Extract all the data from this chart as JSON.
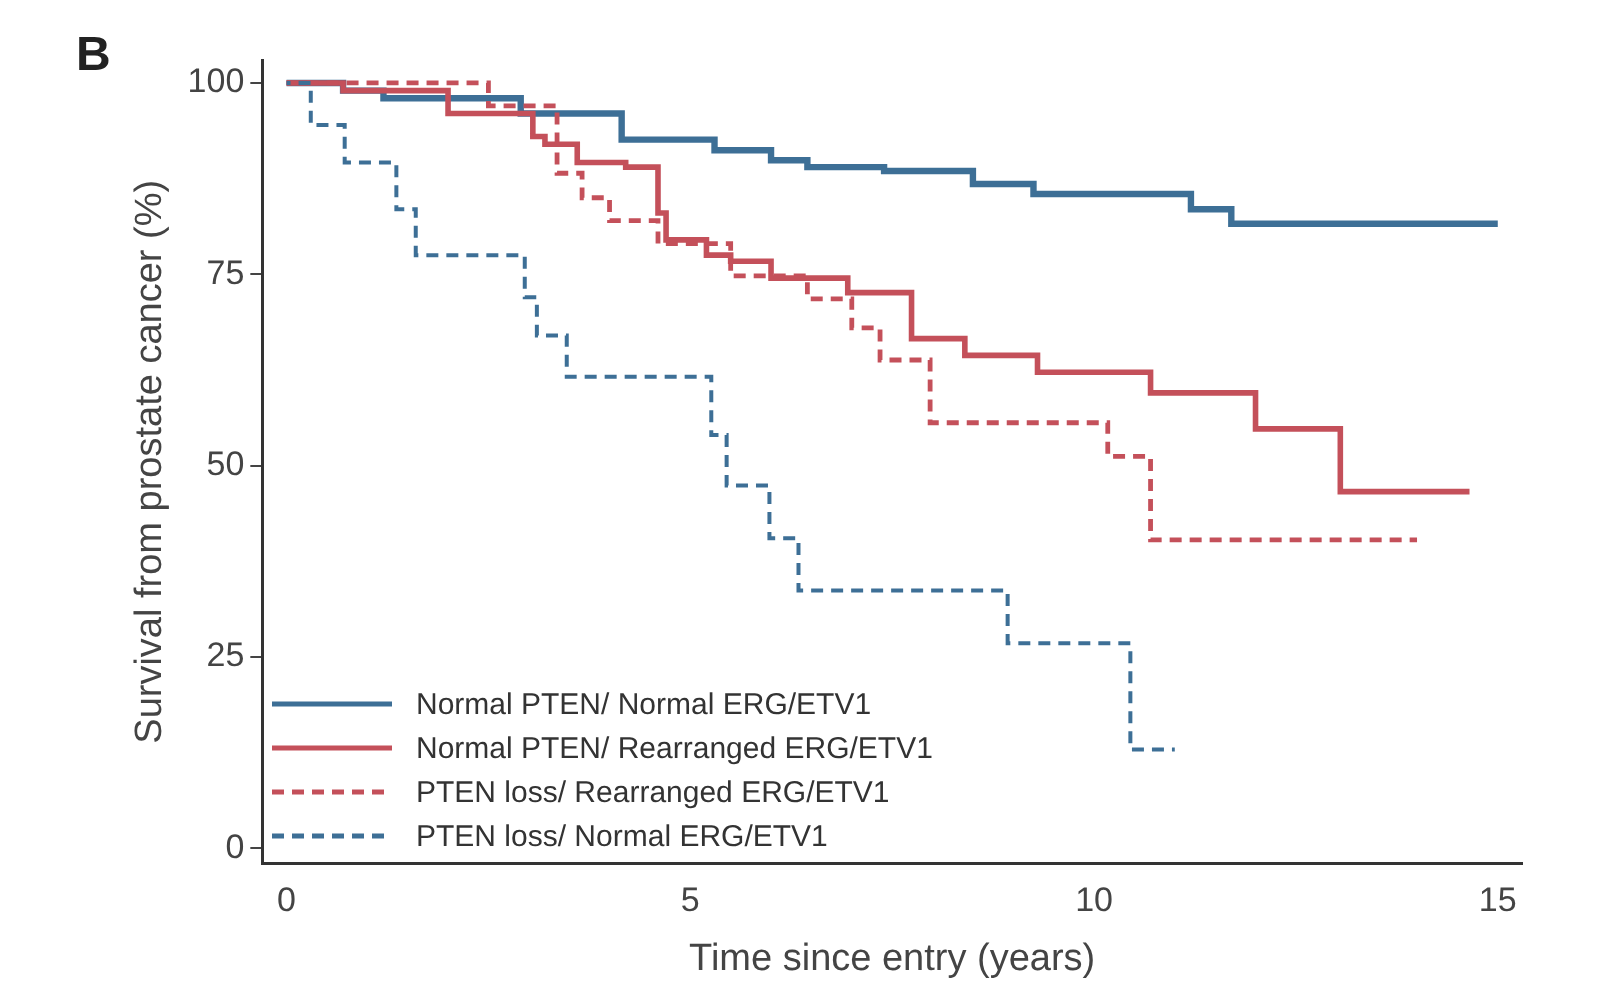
{
  "chart_data": {
    "type": "step",
    "xlabel": "Time since entry (years)",
    "ylabel": "Survival from prostate cancer (%)",
    "annotations": [
      "B"
    ],
    "xlim": [
      -0.3,
      15.3
    ],
    "ylim": [
      -2,
      103
    ],
    "xticks": [
      0,
      5,
      10,
      15
    ],
    "yticks": [
      0,
      25,
      50,
      75,
      100
    ],
    "grid": false,
    "legend": "bottom left",
    "series": [
      {
        "name": "Normal PTEN/ Normal ERG/ETV1",
        "color": "#3d6f96",
        "line_style": "solid",
        "x": [
          0,
          0.7,
          1.2,
          2.9,
          4.15,
          5.3,
          6.0,
          6.45,
          7.4,
          8.5,
          9.25,
          11.2,
          11.7,
          15
        ],
        "values": [
          100,
          99,
          98,
          96,
          92.6,
          91.2,
          89.9,
          89,
          88.5,
          86.8,
          85.5,
          83.5,
          81.6,
          81.6
        ]
      },
      {
        "name": "Normal PTEN/ Rearranged ERG/ETV1",
        "color": "#c4505a",
        "line_style": "solid",
        "x": [
          0,
          0.7,
          2.0,
          3.05,
          3.2,
          3.6,
          4.2,
          4.6,
          4.7,
          5.2,
          5.5,
          6.0,
          6.95,
          7.74,
          8.4,
          9.3,
          10.7,
          12.0,
          13.05,
          14.65
        ],
        "values": [
          100,
          99,
          96,
          93,
          92,
          89.6,
          89,
          83,
          79.5,
          77.5,
          76.7,
          74.5,
          72.6,
          66.6,
          64.4,
          62.2,
          59.5,
          54.8,
          46.6,
          46.6
        ]
      },
      {
        "name": "PTEN loss/ Rearranged ERG/ETV1",
        "color": "#c4505a",
        "line_style": "dashed",
        "x": [
          0,
          2.5,
          3.35,
          3.66,
          4.0,
          4.6,
          5.5,
          6.45,
          7.0,
          7.35,
          7.97,
          10.17,
          10.7,
          14.0
        ],
        "values": [
          100,
          97,
          88.2,
          85,
          82,
          79,
          74.8,
          71.8,
          68,
          63.8,
          55.6,
          51.2,
          40.3,
          40.3
        ]
      },
      {
        "name": "PTEN loss/ Normal ERG/ETV1",
        "color": "#3d6f96",
        "line_style": "dashed",
        "x": [
          0,
          0.3,
          0.72,
          1.36,
          1.6,
          2.95,
          3.1,
          3.47,
          5.26,
          5.45,
          5.98,
          6.34,
          8.93,
          10.45,
          11.0
        ],
        "values": [
          100,
          94.5,
          89.6,
          83.5,
          77.5,
          72,
          67,
          61.6,
          54,
          47.4,
          40.5,
          33.7,
          26.8,
          12.9,
          12.9
        ]
      }
    ]
  }
}
